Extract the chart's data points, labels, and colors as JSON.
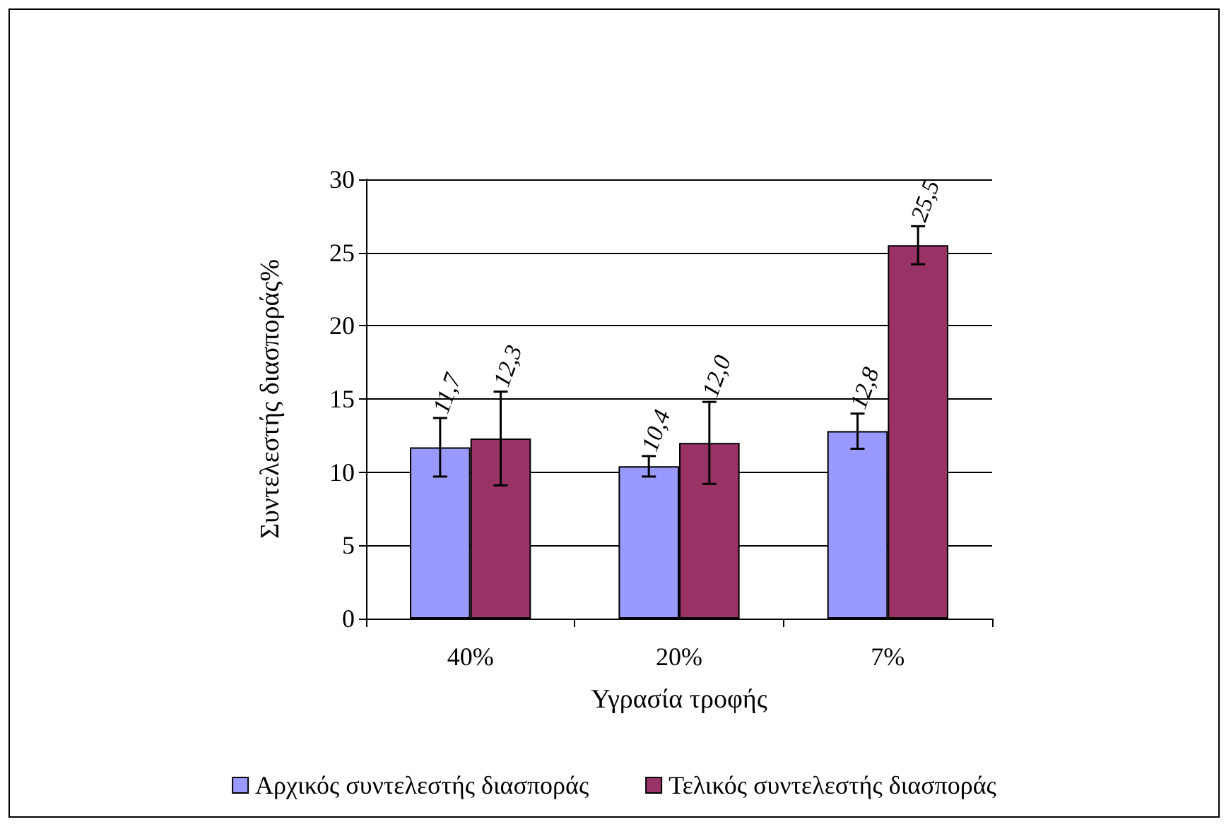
{
  "chart_data": {
    "type": "bar",
    "xlabel": "Υγρασία τροφής",
    "ylabel": "Συντελεστής διασποράς%",
    "categories": [
      "40%",
      "20%",
      "7%"
    ],
    "series": [
      {
        "name": "Αρχικός συντελεστής διασποράς",
        "color": "#9999ff",
        "values": [
          11.7,
          10.4,
          12.8
        ],
        "errors": [
          2.0,
          0.7,
          1.2
        ],
        "value_labels": [
          "11,7",
          "10,4",
          "12,8"
        ]
      },
      {
        "name": "Τελικός συντελεστής διασποράς",
        "color": "#993366",
        "values": [
          12.3,
          12.0,
          25.5
        ],
        "errors": [
          3.2,
          2.8,
          1.3
        ],
        "value_labels": [
          "12,3",
          "12,0",
          "25,5"
        ]
      }
    ],
    "ylim": [
      0,
      30
    ],
    "yticks": [
      0,
      5,
      10,
      15,
      20,
      25,
      30
    ],
    "grid": "y",
    "legend": "bottom"
  }
}
